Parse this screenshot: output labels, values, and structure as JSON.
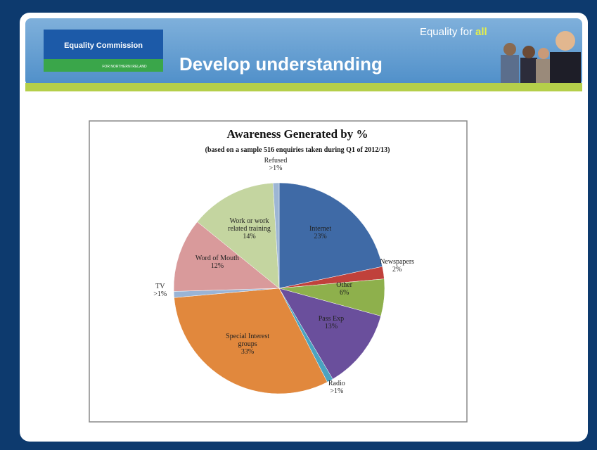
{
  "header": {
    "logo_title": "Equality Commission",
    "logo_subtitle": "FOR NORTHERN IRELAND",
    "title": "Develop understanding",
    "tagline": "Equality for",
    "tagline_highlight": "all"
  },
  "chart_data": {
    "type": "pie",
    "title": "Awareness Generated by %",
    "subtitle": "(based on a sample 516 enquiries taken during Q1 of 2012/13)",
    "categories": [
      "Internet",
      "Newspapers",
      "Other",
      "Pass Exp",
      "Radio",
      "Special Interest groups",
      "TV",
      "Word of Mouth",
      "Work or work related training",
      "Refused"
    ],
    "values": [
      23,
      2,
      6,
      13,
      1,
      33,
      1,
      12,
      14,
      1
    ],
    "value_labels": [
      "23%",
      "2%",
      "6%",
      "13%",
      ">1%",
      "33%",
      ">1%",
      "12%",
      "14%",
      ">1%"
    ],
    "colors": [
      "#3f6aa6",
      "#c0413b",
      "#8eb04c",
      "#6a4f9c",
      "#4aa3c0",
      "#e1883d",
      "#9ab4d6",
      "#d99a9b",
      "#c4d5a0",
      "#9db6d4"
    ]
  }
}
